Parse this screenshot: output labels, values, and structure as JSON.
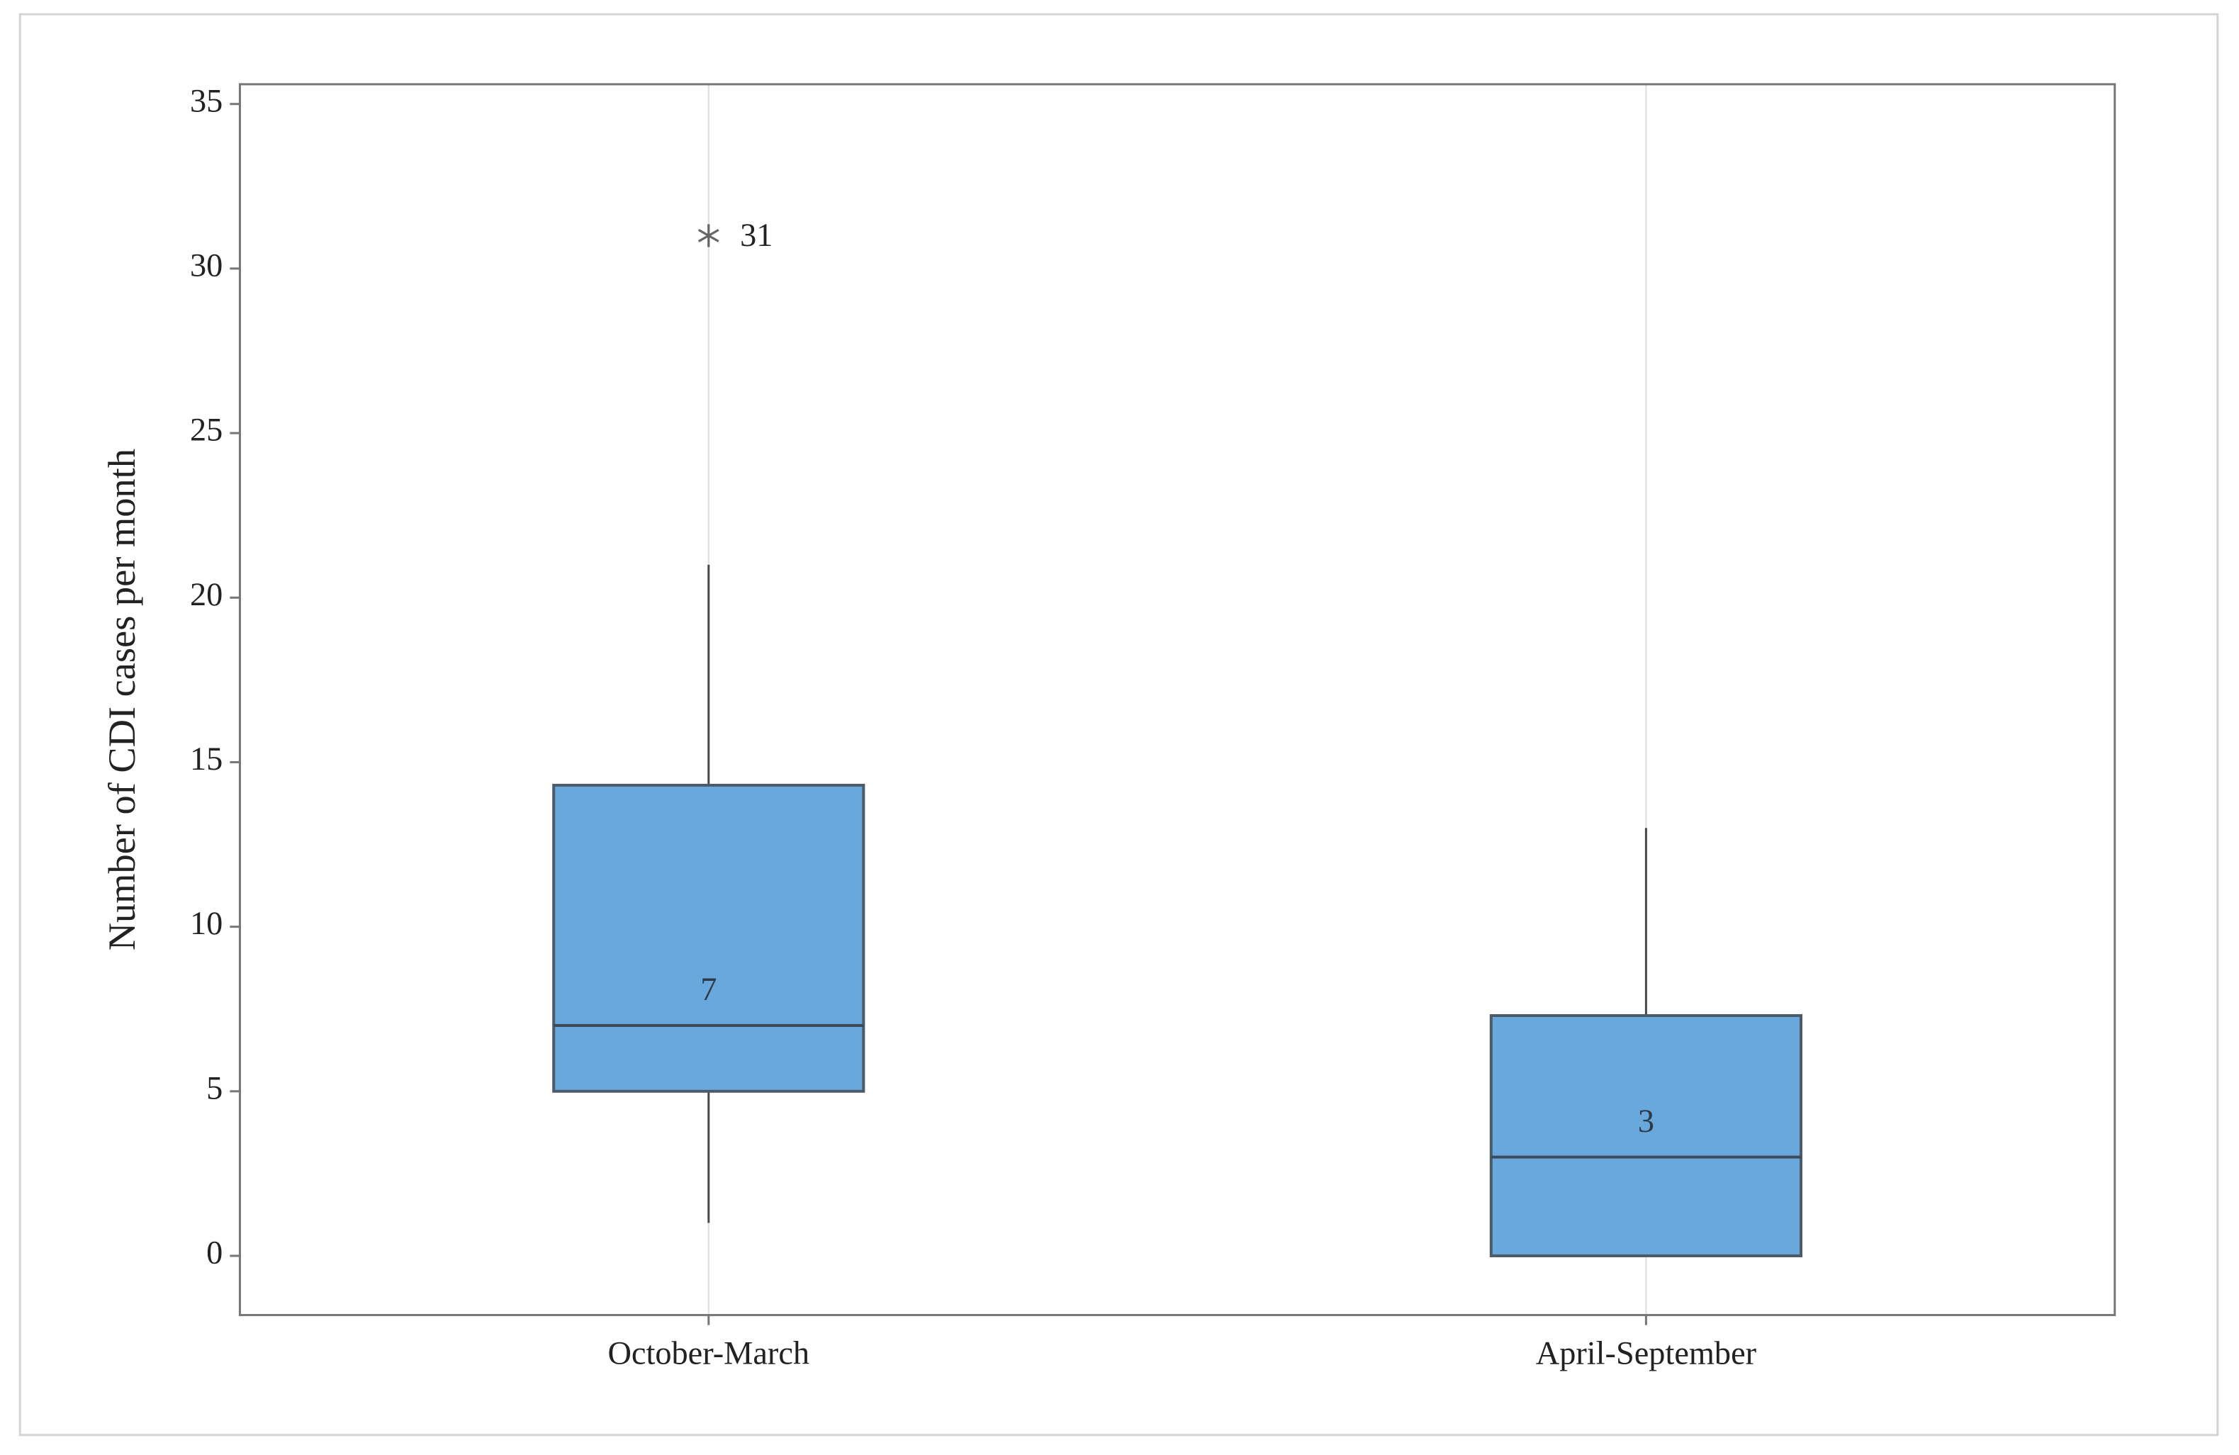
{
  "chart_data": {
    "type": "box",
    "y_label": "Number of CDI cases per month",
    "categories": [
      "October-March",
      "April-September"
    ],
    "boxes": [
      {
        "whisker_low": 1,
        "q1": 5,
        "median": 7,
        "q3": 14.3,
        "whisker_high": 21,
        "outliers": [
          31
        ]
      },
      {
        "whisker_low": 0,
        "q1": 0,
        "median": 3,
        "q3": 7.3,
        "whisker_high": 13,
        "outliers": []
      }
    ],
    "color": "#68a8dc",
    "edge_color": "#4d5b69",
    "ylim": [
      -1.8,
      35.6
    ],
    "yticks": [
      0,
      5,
      10,
      15,
      20,
      25,
      30,
      35
    ],
    "grid": true
  }
}
